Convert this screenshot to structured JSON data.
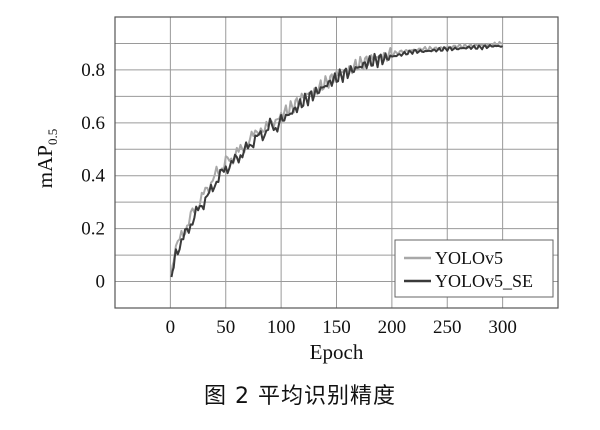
{
  "caption": "图 2 平均识别精度",
  "chart_data": {
    "type": "line",
    "title": "",
    "xlabel": "Epoch",
    "ylabel_main": "mAP",
    "ylabel_sub": "0.5",
    "xlim": [
      -50,
      350
    ],
    "ylim": [
      -0.1,
      1.0
    ],
    "x_ticks": [
      0,
      50,
      100,
      150,
      200,
      250,
      300
    ],
    "y_ticks": [
      0,
      0.2,
      0.4,
      0.6,
      0.8
    ],
    "grid": true,
    "legend_position": "bottom-right",
    "series": [
      {
        "name": "YOLOv5",
        "color": "#a8a8a8",
        "x": [
          1,
          3,
          5,
          10,
          15,
          20,
          25,
          30,
          35,
          40,
          45,
          50,
          55,
          60,
          65,
          70,
          75,
          80,
          85,
          90,
          95,
          100,
          110,
          120,
          130,
          140,
          150,
          160,
          170,
          180,
          190,
          200,
          210,
          220,
          230,
          240,
          250,
          260,
          270,
          280,
          290,
          300
        ],
        "values": [
          0.02,
          0.09,
          0.13,
          0.17,
          0.21,
          0.26,
          0.29,
          0.33,
          0.36,
          0.4,
          0.42,
          0.46,
          0.45,
          0.5,
          0.49,
          0.53,
          0.55,
          0.58,
          0.56,
          0.62,
          0.59,
          0.63,
          0.66,
          0.7,
          0.72,
          0.75,
          0.78,
          0.8,
          0.82,
          0.84,
          0.85,
          0.86,
          0.87,
          0.875,
          0.88,
          0.88,
          0.885,
          0.89,
          0.89,
          0.895,
          0.895,
          0.9
        ]
      },
      {
        "name": "YOLOv5_SE",
        "color": "#3a3a3a",
        "x": [
          1,
          3,
          5,
          10,
          15,
          20,
          25,
          30,
          35,
          40,
          45,
          50,
          55,
          60,
          65,
          70,
          75,
          80,
          85,
          90,
          95,
          100,
          110,
          120,
          130,
          140,
          150,
          160,
          170,
          180,
          190,
          200,
          210,
          220,
          230,
          240,
          250,
          260,
          270,
          280,
          290,
          300
        ],
        "values": [
          0.01,
          0.07,
          0.11,
          0.15,
          0.19,
          0.23,
          0.27,
          0.3,
          0.33,
          0.37,
          0.4,
          0.43,
          0.44,
          0.47,
          0.48,
          0.51,
          0.53,
          0.55,
          0.56,
          0.59,
          0.58,
          0.61,
          0.64,
          0.68,
          0.71,
          0.74,
          0.77,
          0.79,
          0.81,
          0.83,
          0.84,
          0.85,
          0.86,
          0.87,
          0.87,
          0.875,
          0.88,
          0.88,
          0.885,
          0.885,
          0.89,
          0.89
        ]
      }
    ]
  }
}
